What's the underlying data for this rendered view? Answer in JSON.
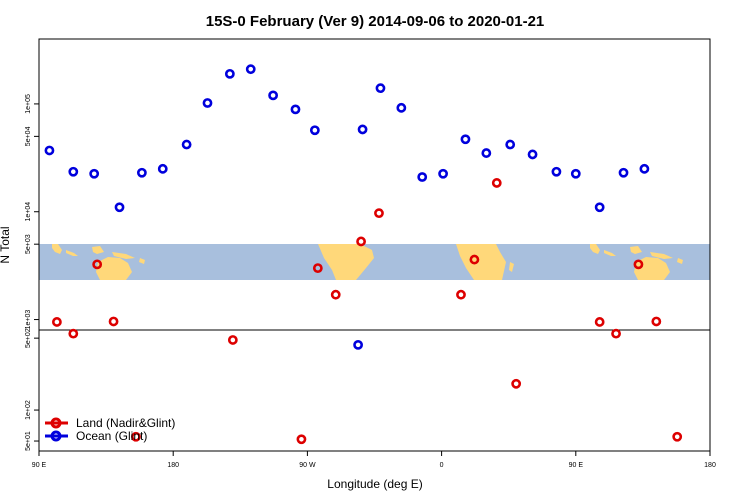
{
  "chart_data": {
    "type": "scatter",
    "title": "15S-0 February (Ver 9)   2014-09-06 to 2020-01-21",
    "xlabel": "Longitude (deg E)",
    "ylabel": "N Total",
    "y_scale": "log",
    "x_ticks": [
      {
        "value": 90,
        "label": "90 E"
      },
      {
        "value": 180,
        "label": "180"
      },
      {
        "value": 270,
        "label": "90 W"
      },
      {
        "value": 360,
        "label": "0"
      },
      {
        "value": 450,
        "label": "90 E"
      },
      {
        "value": 540,
        "label": "180"
      }
    ],
    "xlim": [
      90,
      540
    ],
    "upper_panel": {
      "ylim": [
        800,
        400000
      ],
      "y_ticks": [
        {
          "value": 1000,
          "label": "1e+03"
        },
        {
          "value": 5000,
          "label": "5e+03"
        },
        {
          "value": 10000,
          "label": "1e+04"
        },
        {
          "value": 50000,
          "label": "5e+04"
        },
        {
          "value": 100000,
          "label": "1e+05"
        }
      ]
    },
    "lower_panel": {
      "ylim": [
        40,
        600
      ],
      "y_ticks": [
        {
          "value": 50,
          "label": "5e+01"
        },
        {
          "value": 100,
          "label": "1e+02"
        },
        {
          "value": 500,
          "label": "5e+02"
        }
      ]
    },
    "legend": {
      "position": "bottom-left",
      "entries": [
        {
          "label": "Land (Nadir&Glint)",
          "color": "#dd0000"
        },
        {
          "label": "Ocean (Glint)",
          "color": "#0000dd"
        }
      ]
    },
    "series": [
      {
        "name": "Land (Nadir&Glint)",
        "color": "#dd0000",
        "points": [
          {
            "x": 102,
            "y": 950
          },
          {
            "x": 113,
            "y": 740
          },
          {
            "x": 129,
            "y": 3250
          },
          {
            "x": 140,
            "y": 960
          },
          {
            "x": 155,
            "y": 55
          },
          {
            "x": 220,
            "y": 480
          },
          {
            "x": 266,
            "y": 52
          },
          {
            "x": 277,
            "y": 3000
          },
          {
            "x": 289,
            "y": 1700
          },
          {
            "x": 306,
            "y": 5300
          },
          {
            "x": 318,
            "y": 9700
          },
          {
            "x": 373,
            "y": 1700
          },
          {
            "x": 382,
            "y": 3600
          },
          {
            "x": 397,
            "y": 18500
          },
          {
            "x": 410,
            "y": 180
          },
          {
            "x": 466,
            "y": 950
          },
          {
            "x": 477,
            "y": 740
          },
          {
            "x": 492,
            "y": 3250
          },
          {
            "x": 504,
            "y": 960
          },
          {
            "x": 518,
            "y": 55
          }
        ]
      },
      {
        "name": "Ocean (Glint)",
        "color": "#0000dd",
        "points": [
          {
            "x": 97,
            "y": 37000
          },
          {
            "x": 113,
            "y": 23500
          },
          {
            "x": 127,
            "y": 22500
          },
          {
            "x": 144,
            "y": 11000
          },
          {
            "x": 159,
            "y": 23000
          },
          {
            "x": 173,
            "y": 25000
          },
          {
            "x": 189,
            "y": 42000
          },
          {
            "x": 203,
            "y": 102000
          },
          {
            "x": 218,
            "y": 190000
          },
          {
            "x": 232,
            "y": 210000
          },
          {
            "x": 247,
            "y": 120000
          },
          {
            "x": 262,
            "y": 89000
          },
          {
            "x": 275,
            "y": 57000
          },
          {
            "x": 304,
            "y": 430
          },
          {
            "x": 307,
            "y": 58000
          },
          {
            "x": 319,
            "y": 140000
          },
          {
            "x": 333,
            "y": 92000
          },
          {
            "x": 347,
            "y": 21000
          },
          {
            "x": 361,
            "y": 22500
          },
          {
            "x": 376,
            "y": 47000
          },
          {
            "x": 390,
            "y": 35000
          },
          {
            "x": 406,
            "y": 42000
          },
          {
            "x": 421,
            "y": 34000
          },
          {
            "x": 437,
            "y": 23500
          },
          {
            "x": 450,
            "y": 22500
          },
          {
            "x": 466,
            "y": 11000
          },
          {
            "x": 482,
            "y": 23000
          },
          {
            "x": 496,
            "y": 25000
          }
        ]
      }
    ]
  },
  "colors": {
    "background": "#ffffff",
    "map_ocean": "#a8bfdd",
    "map_land": "#ffd87a",
    "land_series": "#dd0000",
    "ocean_series": "#0000dd"
  }
}
